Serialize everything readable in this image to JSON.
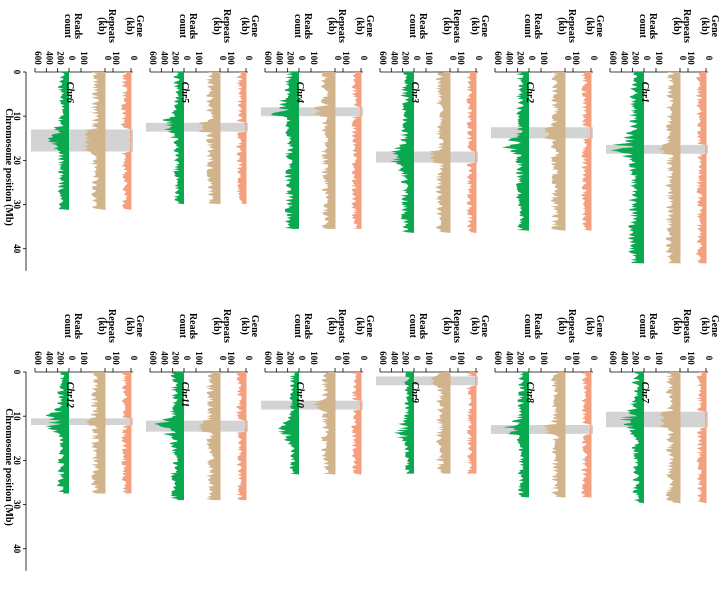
{
  "chart_data": {
    "type": "area",
    "orientation": "rotated 90 degrees clockwise (chromosome position runs top to bottom)",
    "x_axis_label": "Chromosome position (Mb)",
    "x_ticks": [
      0,
      10,
      20,
      30,
      40
    ],
    "xlim": [
      0,
      45
    ],
    "track_labels": {
      "gene": [
        "Gene",
        "(kb)"
      ],
      "repeats": [
        "Repeats",
        "(kb)"
      ],
      "reads": [
        "Reads",
        "count"
      ]
    },
    "track_ticks": {
      "gene": [
        0,
        100
      ],
      "repeats": [
        0,
        100
      ],
      "reads": [
        0,
        200,
        400,
        600
      ]
    },
    "colors": {
      "gene": "#f4a07f",
      "repeats": "#d2b48c",
      "reads": "#0aa84f",
      "centromere": "#d3d3d3"
    },
    "chromosomes": [
      {
        "name": "Chr1",
        "length_mb": 43.3,
        "centromere_mb": [
          16.5,
          18.5
        ],
        "reads_mean": 190,
        "reads_peak_mb": 17.0,
        "reads_peak": 420
      },
      {
        "name": "Chr2",
        "length_mb": 35.9,
        "centromere_mb": [
          12.5,
          15.0
        ],
        "reads_mean": 160,
        "reads_peak_mb": 17.0,
        "reads_peak": 290
      },
      {
        "name": "Chr3",
        "length_mb": 36.4,
        "centromere_mb": [
          18.0,
          20.5
        ],
        "reads_mean": 170,
        "reads_peak_mb": 19.0,
        "reads_peak": 350
      },
      {
        "name": "Chr4",
        "length_mb": 35.5,
        "centromere_mb": [
          8.0,
          10.0
        ],
        "reads_mean": 175,
        "reads_peak_mb": 9.0,
        "reads_peak": 300
      },
      {
        "name": "Chr5",
        "length_mb": 29.9,
        "centromere_mb": [
          11.5,
          13.5
        ],
        "reads_mean": 130,
        "reads_peak_mb": 12.0,
        "reads_peak": 260
      },
      {
        "name": "Chr6",
        "length_mb": 31.2,
        "centromere_mb": [
          13.0,
          18.0
        ],
        "reads_mean": 140,
        "reads_peak_mb": 15.0,
        "reads_peak": 260
      },
      {
        "name": "Chr7",
        "length_mb": 29.7,
        "centromere_mb": [
          9.0,
          12.5
        ],
        "reads_mean": 150,
        "reads_peak_mb": 11.0,
        "reads_peak": 360
      },
      {
        "name": "Chr8",
        "length_mb": 28.4,
        "centromere_mb": [
          12.0,
          14.0
        ],
        "reads_mean": 140,
        "reads_peak_mb": 12.5,
        "reads_peak": 300
      },
      {
        "name": "Chr9",
        "length_mb": 23.0,
        "centromere_mb": [
          1.0,
          3.0
        ],
        "reads_mean": 120,
        "reads_peak_mb": 13.0,
        "reads_peak": 280
      },
      {
        "name": "Chr10",
        "length_mb": 23.2,
        "centromere_mb": [
          6.5,
          8.5
        ],
        "reads_mean": 120,
        "reads_peak_mb": 13.0,
        "reads_peak": 250
      },
      {
        "name": "Chr11",
        "length_mb": 29.0,
        "centromere_mb": [
          11.0,
          13.5
        ],
        "reads_mean": 170,
        "reads_peak_mb": 12.0,
        "reads_peak": 320
      },
      {
        "name": "Chr12",
        "length_mb": 27.5,
        "centromere_mb": [
          10.5,
          12.0
        ],
        "reads_mean": 150,
        "reads_peak_mb": 11.0,
        "reads_peak": 300
      }
    ]
  }
}
